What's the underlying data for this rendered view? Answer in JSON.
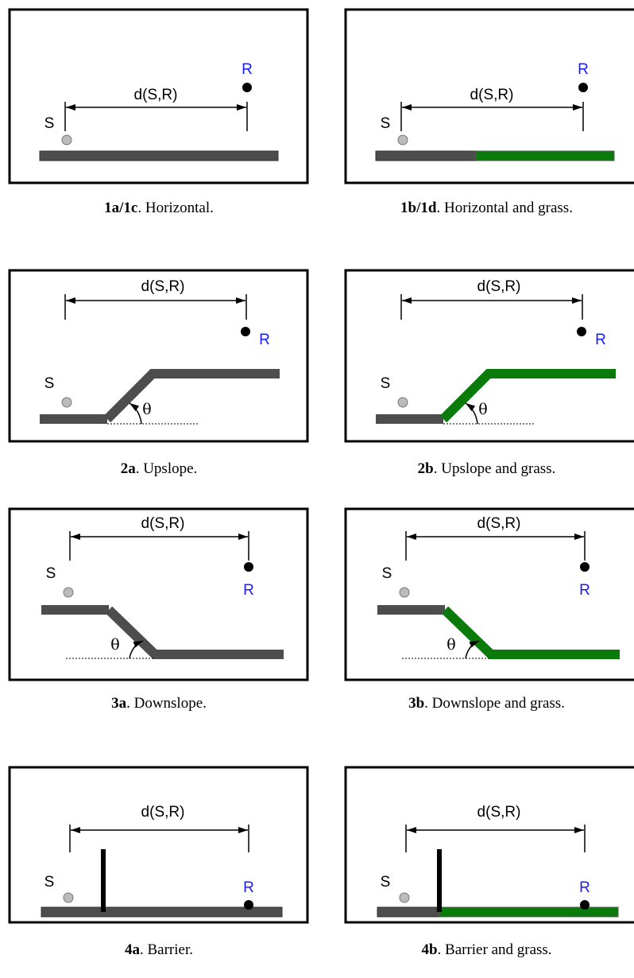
{
  "panels": [
    {
      "id": "1a/1c",
      "caption": ". Horizontal.",
      "source": "S",
      "receiver": "R",
      "distance": "d(S,R)"
    },
    {
      "id": "1b/1d",
      "caption": ". Horizontal and grass.",
      "source": "S",
      "receiver": "R",
      "distance": "d(S,R)"
    },
    {
      "id": "2a",
      "caption": ". Upslope.",
      "source": "S",
      "receiver": "R",
      "distance": "d(S,R)",
      "angle": "θ"
    },
    {
      "id": "2b",
      "caption": ". Upslope and grass.",
      "source": "S",
      "receiver": "R",
      "distance": "d(S,R)",
      "angle": "θ"
    },
    {
      "id": "3a",
      "caption": ". Downslope.",
      "source": "S",
      "receiver": "R",
      "distance": "d(S,R)",
      "angle": "θ"
    },
    {
      "id": "3b",
      "caption": ". Downslope and grass.",
      "source": "S",
      "receiver": "R",
      "distance": "d(S,R)",
      "angle": "θ"
    },
    {
      "id": "4a",
      "caption": ". Barrier.",
      "source": "S",
      "receiver": "R",
      "distance": "d(S,R)"
    },
    {
      "id": "4b",
      "caption": ". Barrier and grass.",
      "source": "S",
      "receiver": "R",
      "distance": "d(S,R)"
    }
  ]
}
